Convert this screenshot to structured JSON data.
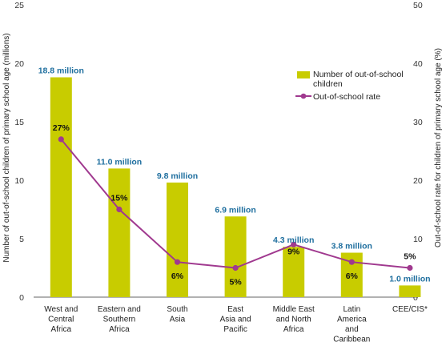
{
  "chart_data": {
    "type": "bar",
    "categories": [
      [
        "West and",
        "Central",
        "Africa"
      ],
      [
        "Eastern and",
        "Southern",
        "Africa"
      ],
      [
        "South",
        "Asia"
      ],
      [
        "East",
        "Asia and",
        "Pacific"
      ],
      [
        "Middle East",
        "and North",
        "Africa"
      ],
      [
        "Latin",
        "America",
        "and",
        "Caribbean"
      ],
      [
        "CEE/CIS*"
      ]
    ],
    "series": [
      {
        "name": "Number of out-of-school children",
        "type": "bar",
        "axis": "left",
        "values": [
          18.8,
          11.0,
          9.8,
          6.9,
          4.3,
          3.8,
          1.0
        ],
        "labels": [
          "18.8 million",
          "11.0 million",
          "9.8 million",
          "6.9 million",
          "4.3 million",
          "3.8 million",
          "1.0 million"
        ],
        "color": "#c8cc00"
      },
      {
        "name": "Out-of-school rate",
        "type": "line",
        "axis": "right",
        "values": [
          27,
          15,
          6,
          5,
          9,
          6,
          5
        ],
        "labels": [
          "27%",
          "15%",
          "6%",
          "5%",
          "9%",
          "6%",
          "5%"
        ],
        "color": "#a0398f"
      }
    ],
    "y_left": {
      "label": "Number of out-of-school children of primary school age (millions)",
      "ylim": [
        0,
        25
      ],
      "ticks": [
        "0",
        "5",
        "10",
        "15",
        "20",
        "25"
      ]
    },
    "y_right": {
      "label": "Out-of-school rate for children of primary school age  (%)",
      "ylim": [
        0,
        50
      ],
      "ticks": [
        "0",
        "10",
        "20",
        "30",
        "40",
        "50"
      ]
    },
    "legend": {
      "position": "top-right",
      "bar_label": [
        "Number of out-of-school",
        "children"
      ],
      "line_label": "Out-of-school rate"
    },
    "grid": false
  }
}
